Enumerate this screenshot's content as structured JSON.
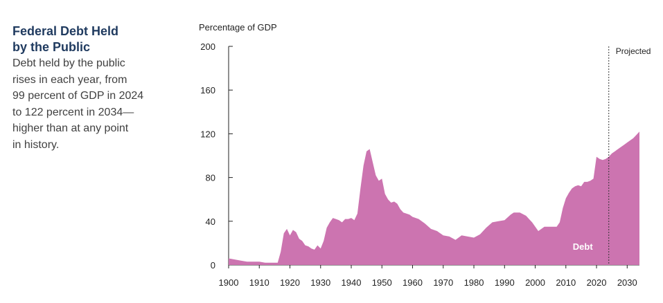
{
  "sidebar": {
    "title": "Federal Debt Held\nby the Public",
    "description": "Debt held by the public\nrises in each year, from\n99 percent of GDP in 2024\nto 122 percent in 2034—\nhigher than at any point\nin history."
  },
  "chart_data": {
    "type": "area",
    "ylabel": "Percentage of GDP",
    "ylim": [
      0,
      200
    ],
    "xlim": [
      1900,
      2034
    ],
    "yticks": [
      "0",
      "40",
      "80",
      "120",
      "160",
      "200"
    ],
    "xticks": [
      "1900",
      "1910",
      "1920",
      "1930",
      "1940",
      "1950",
      "1960",
      "1970",
      "1980",
      "1990",
      "2000",
      "2010",
      "2020",
      "2030"
    ],
    "annotations": {
      "projected_label": "Projected",
      "projected_start": 2024
    },
    "colors": {
      "area": "#cc74b0",
      "projection_line": "#333333",
      "area_label": "#ffffff"
    },
    "series": [
      {
        "name": "Debt",
        "x": [
          1900,
          1902,
          1904,
          1906,
          1908,
          1910,
          1912,
          1914,
          1916,
          1917,
          1918,
          1919,
          1920,
          1921,
          1922,
          1923,
          1924,
          1925,
          1926,
          1927,
          1928,
          1929,
          1930,
          1931,
          1932,
          1933,
          1934,
          1935,
          1936,
          1937,
          1938,
          1939,
          1940,
          1941,
          1942,
          1943,
          1944,
          1945,
          1946,
          1947,
          1948,
          1949,
          1950,
          1951,
          1952,
          1953,
          1954,
          1955,
          1956,
          1957,
          1958,
          1959,
          1960,
          1962,
          1964,
          1966,
          1968,
          1970,
          1972,
          1974,
          1976,
          1978,
          1980,
          1982,
          1984,
          1986,
          1988,
          1990,
          1992,
          1993,
          1995,
          1997,
          1999,
          2001,
          2003,
          2005,
          2007,
          2008,
          2009,
          2010,
          2011,
          2012,
          2013,
          2014,
          2015,
          2016,
          2017,
          2018,
          2019,
          2020,
          2021,
          2022,
          2023,
          2024,
          2025,
          2026,
          2027,
          2028,
          2029,
          2030,
          2031,
          2032,
          2033,
          2034
        ],
        "values": [
          6,
          5,
          4,
          3,
          3,
          3,
          2,
          2,
          2,
          12,
          29,
          33,
          27,
          32,
          30,
          24,
          22,
          18,
          17,
          15,
          14,
          18,
          15,
          22,
          34,
          39,
          43,
          42,
          41,
          39,
          42,
          42,
          43,
          41,
          47,
          70,
          91,
          104,
          106,
          94,
          82,
          77,
          79,
          65,
          60,
          57,
          58,
          56,
          51,
          48,
          47,
          46,
          44,
          42,
          38,
          33,
          31,
          27,
          26,
          23,
          27,
          26,
          25,
          28,
          34,
          39,
          40,
          41,
          46,
          48,
          48,
          45,
          39,
          31,
          35,
          35,
          35,
          39,
          52,
          61,
          66,
          70,
          72,
          73,
          72,
          76,
          76,
          77,
          79,
          99,
          97,
          96,
          97,
          99,
          102,
          104,
          106,
          108,
          110,
          112,
          114,
          116,
          119,
          122
        ]
      }
    ]
  }
}
